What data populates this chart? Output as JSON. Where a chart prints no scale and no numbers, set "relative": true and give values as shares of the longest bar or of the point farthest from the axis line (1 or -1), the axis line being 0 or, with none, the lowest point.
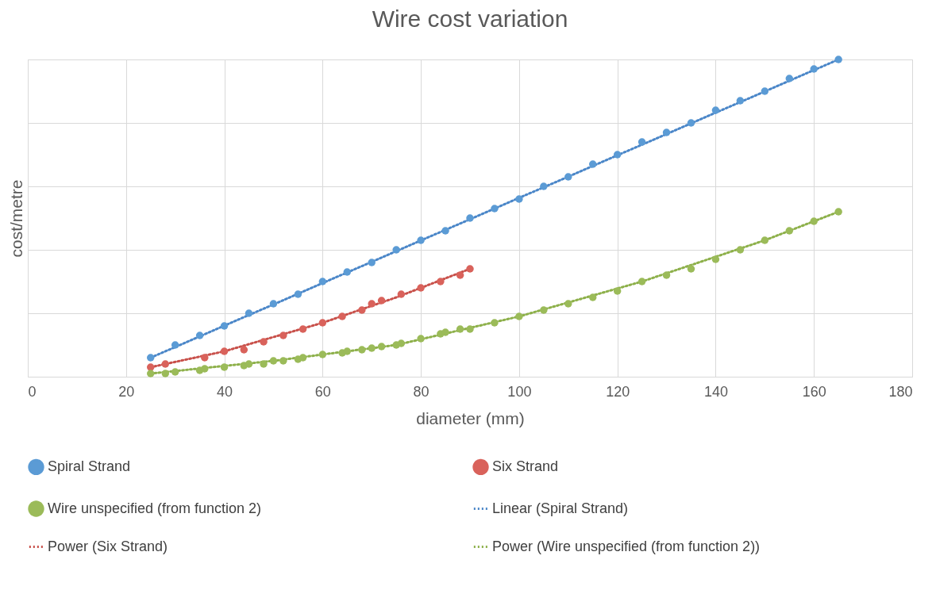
{
  "chart_data": {
    "type": "scatter",
    "title": "Wire cost variation",
    "xlabel": "diameter (mm)",
    "ylabel": "cost/metre",
    "relative": true,
    "xlim": [
      0,
      180
    ],
    "xticks": [
      0,
      20,
      40,
      60,
      80,
      100,
      120,
      140,
      160,
      180
    ],
    "grid": true,
    "legend": "bottom",
    "line_style": "dotted",
    "series": [
      {
        "name": "Spiral Strand",
        "marker": "circle",
        "color": "#5b9bd5",
        "x": [
          25,
          30,
          35,
          40,
          45,
          50,
          55,
          60,
          65,
          70,
          75,
          80,
          85,
          90,
          95,
          100,
          105,
          110,
          115,
          120,
          125,
          130,
          135,
          140,
          145,
          150,
          155,
          160,
          165
        ],
        "values": [
          0.06,
          0.1,
          0.13,
          0.16,
          0.2,
          0.23,
          0.26,
          0.3,
          0.33,
          0.36,
          0.4,
          0.43,
          0.46,
          0.5,
          0.53,
          0.56,
          0.6,
          0.63,
          0.67,
          0.7,
          0.74,
          0.77,
          0.8,
          0.84,
          0.87,
          0.9,
          0.94,
          0.97,
          1
        ]
      },
      {
        "name": "Six Strand",
        "marker": "circle",
        "color": "#d9625b",
        "x": [
          25,
          28,
          36,
          40,
          44,
          48,
          52,
          56,
          60,
          64,
          68,
          70,
          72,
          76,
          80,
          84,
          88,
          90
        ],
        "values": [
          0.03,
          0.04,
          0.06,
          0.08,
          0.085,
          0.11,
          0.13,
          0.15,
          0.17,
          0.19,
          0.21,
          0.23,
          0.24,
          0.26,
          0.28,
          0.3,
          0.32,
          0.34
        ]
      },
      {
        "name": "Wire unspecified (from function 2)",
        "marker": "circle",
        "color": "#9bbb59",
        "x": [
          25,
          28,
          30,
          35,
          36,
          40,
          44,
          45,
          48,
          50,
          52,
          55,
          56,
          60,
          64,
          65,
          68,
          70,
          72,
          75,
          76,
          80,
          84,
          85,
          88,
          90,
          95,
          100,
          105,
          110,
          115,
          120,
          125,
          130,
          135,
          140,
          145,
          150,
          155,
          160,
          165
        ],
        "values": [
          0.01,
          0.01,
          0.015,
          0.02,
          0.025,
          0.03,
          0.035,
          0.04,
          0.04,
          0.05,
          0.05,
          0.055,
          0.06,
          0.07,
          0.075,
          0.08,
          0.085,
          0.09,
          0.095,
          0.1,
          0.105,
          0.12,
          0.135,
          0.14,
          0.15,
          0.15,
          0.17,
          0.19,
          0.21,
          0.23,
          0.25,
          0.27,
          0.3,
          0.32,
          0.34,
          0.37,
          0.4,
          0.43,
          0.46,
          0.49,
          0.52
        ]
      },
      {
        "name": "Linear (Spiral Strand)",
        "type": "line",
        "marker": "none",
        "color": "#4a86c8",
        "x": [
          25,
          165
        ],
        "values": [
          0.06,
          1
        ]
      },
      {
        "name": "Power (Six Strand)",
        "type": "line",
        "marker": "none",
        "color": "#c8504a",
        "x": [
          25,
          40,
          60,
          75,
          90
        ],
        "values": [
          0.03,
          0.08,
          0.17,
          0.25,
          0.34
        ]
      },
      {
        "name": "Power (Wire unspecified (from function 2))",
        "type": "line",
        "marker": "none",
        "color": "#8db04a",
        "x": [
          25,
          50,
          75,
          100,
          125,
          150,
          165
        ],
        "values": [
          0.01,
          0.05,
          0.1,
          0.19,
          0.3,
          0.43,
          0.52
        ]
      }
    ]
  }
}
